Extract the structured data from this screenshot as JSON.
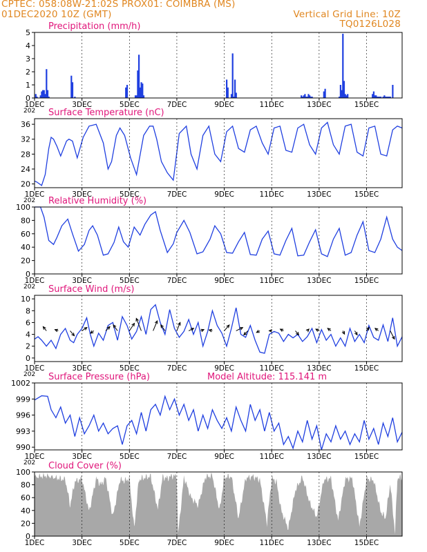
{
  "header": {
    "line1": "CPTEC:   058:08W-21:02S   PROX01: COIMBRA (MS)",
    "line2_left": "01DEC2020 10Z (GMT)",
    "line2_right": "Vertical Grid Line: 10Z",
    "line3_right": "TQ0126L028"
  },
  "colors": {
    "header": "#e0861f",
    "title": "#e0157a",
    "series": "#1f3fe0",
    "cloud": "#a8a8a8",
    "grid": "#000000"
  },
  "x_axis": {
    "tick_labels": [
      "1DEC",
      "3DEC",
      "5DEC",
      "7DEC",
      "9DEC",
      "11DEC",
      "13DEC",
      "15DEC"
    ],
    "tick_days": [
      0,
      2,
      4,
      6,
      8,
      10,
      12,
      14
    ],
    "range_days": [
      0,
      15.5
    ],
    "year_fragment": "202"
  },
  "chart_data": [
    {
      "id": "precip",
      "type": "bar",
      "title": "Precipitation (mm/h)",
      "ylim": [
        0,
        5
      ],
      "yticks": [
        0,
        1,
        2,
        3,
        4,
        5
      ],
      "ytick_labels": [
        "0",
        "1",
        "2",
        "3",
        "4",
        "5"
      ],
      "x": [
        0.05,
        0.1,
        0.25,
        0.3,
        0.35,
        0.4,
        0.45,
        0.5,
        0.55,
        0.6,
        1.55,
        1.6,
        1.7,
        3.85,
        3.9,
        4.25,
        4.3,
        4.35,
        4.4,
        4.45,
        4.5,
        4.55,
        4.6,
        8.1,
        8.15,
        8.3,
        8.35,
        8.4,
        8.45,
        8.5,
        11.25,
        11.3,
        11.35,
        11.4,
        11.45,
        11.5,
        11.55,
        11.6,
        11.65,
        11.7,
        12.2,
        12.25,
        12.85,
        12.9,
        12.95,
        13.0,
        13.05,
        13.1,
        13.15,
        13.2,
        14.25,
        14.3,
        14.35,
        14.4,
        14.45,
        14.5,
        14.55,
        14.6,
        14.7,
        14.75,
        14.8,
        14.85,
        14.9,
        14.95,
        15.0,
        15.1
      ],
      "values": [
        0.3,
        0.1,
        0.2,
        0.5,
        0.6,
        0.6,
        0.3,
        2.2,
        0.6,
        0.1,
        1.7,
        1.2,
        0.1,
        0.8,
        1.0,
        0.2,
        0.2,
        2.1,
        3.3,
        0.8,
        1.2,
        1.1,
        0.2,
        1.4,
        0.8,
        0.3,
        3.4,
        0.1,
        1.4,
        0.4,
        0.2,
        0.1,
        0.2,
        0.3,
        0.1,
        0.1,
        0.3,
        0.2,
        0.1,
        0.1,
        0.5,
        0.7,
        0.1,
        1.0,
        0.6,
        4.9,
        1.3,
        0.3,
        0.2,
        0.3,
        0.3,
        0.5,
        0.2,
        0.2,
        0.1,
        0.1,
        0.1,
        0.1,
        0.1,
        0.2,
        0.1,
        0.1,
        0.1,
        0.1,
        0.1,
        1.0
      ]
    },
    {
      "id": "temp",
      "type": "line",
      "title": "Surface Temperature (nC)",
      "ylim": [
        19,
        37.5
      ],
      "yticks": [
        20,
        24,
        28,
        32,
        36
      ],
      "ytick_labels": [
        "20",
        "24",
        "28",
        "32",
        "36"
      ],
      "x": [
        0,
        0.1,
        0.3,
        0.45,
        0.6,
        0.7,
        0.8,
        0.95,
        1.1,
        1.35,
        1.45,
        1.6,
        1.8,
        2.05,
        2.3,
        2.6,
        2.9,
        3.1,
        3.25,
        3.45,
        3.6,
        3.8,
        4.05,
        4.3,
        4.6,
        4.85,
        5.0,
        5.15,
        5.35,
        5.6,
        5.85,
        6.1,
        6.4,
        6.6,
        6.85,
        7.1,
        7.35,
        7.6,
        7.85,
        8.1,
        8.35,
        8.6,
        8.85,
        9.1,
        9.35,
        9.6,
        9.85,
        10.1,
        10.35,
        10.6,
        10.85,
        11.1,
        11.35,
        11.6,
        11.85,
        12.1,
        12.35,
        12.6,
        12.85,
        13.1,
        13.35,
        13.6,
        13.85,
        14.1,
        14.35,
        14.6,
        14.85,
        15.1,
        15.3,
        15.5
      ],
      "values": [
        20.8,
        20.5,
        19.6,
        22.5,
        29.5,
        32.5,
        32.0,
        30.0,
        27.5,
        31.5,
        32.0,
        31.5,
        27.0,
        32.5,
        35.5,
        36.0,
        31.0,
        24.0,
        26.0,
        33.0,
        35.0,
        33.0,
        27.0,
        22.5,
        33.0,
        35.5,
        35.5,
        32.0,
        26.0,
        23.0,
        21.0,
        33.5,
        35.5,
        28.0,
        24.0,
        33.0,
        35.5,
        28.0,
        26.0,
        34.0,
        35.5,
        29.5,
        28.5,
        34.5,
        35.5,
        31.0,
        28.0,
        35.0,
        35.5,
        29.0,
        28.5,
        35.0,
        36.0,
        30.5,
        28.0,
        35.0,
        36.5,
        30.5,
        28.0,
        35.5,
        36.0,
        28.5,
        27.5,
        35.0,
        35.5,
        28.0,
        27.5,
        34.5,
        35.5,
        35.0
      ]
    },
    {
      "id": "rh",
      "type": "line",
      "title": "Relative Humidity (%)",
      "ylim": [
        0,
        100
      ],
      "yticks": [
        0,
        20,
        40,
        60,
        80,
        100
      ],
      "ytick_labels": [
        "0",
        "20",
        "40",
        "60",
        "80",
        "100"
      ],
      "x": [
        0,
        0.25,
        0.4,
        0.6,
        0.8,
        0.95,
        1.15,
        1.4,
        1.6,
        1.85,
        2.1,
        2.3,
        2.45,
        2.65,
        2.9,
        3.1,
        3.35,
        3.55,
        3.75,
        3.95,
        4.2,
        4.45,
        4.65,
        4.9,
        5.1,
        5.3,
        5.6,
        5.85,
        6.0,
        6.3,
        6.55,
        6.85,
        7.1,
        7.4,
        7.6,
        7.85,
        8.1,
        8.35,
        8.6,
        8.85,
        9.1,
        9.35,
        9.6,
        9.85,
        10.1,
        10.35,
        10.6,
        10.85,
        11.1,
        11.35,
        11.6,
        11.85,
        12.1,
        12.35,
        12.6,
        12.85,
        13.1,
        13.35,
        13.6,
        13.85,
        14.1,
        14.35,
        14.6,
        14.85,
        15.1,
        15.3,
        15.5
      ],
      "values": [
        100,
        100,
        85,
        50,
        44,
        55,
        72,
        82,
        60,
        34,
        44,
        65,
        72,
        58,
        28,
        30,
        47,
        70,
        48,
        40,
        70,
        58,
        74,
        88,
        93,
        65,
        32,
        45,
        62,
        80,
        62,
        30,
        33,
        52,
        72,
        60,
        32,
        31,
        48,
        62,
        29,
        28,
        52,
        64,
        30,
        28,
        50,
        68,
        27,
        28,
        48,
        66,
        30,
        26,
        52,
        68,
        28,
        32,
        58,
        78,
        35,
        32,
        52,
        85,
        52,
        40,
        35
      ]
    },
    {
      "id": "wind",
      "type": "line",
      "title": "Surface Wind (m/s)",
      "ylim": [
        -0.6,
        10.6
      ],
      "yticks": [
        0,
        2,
        4,
        6,
        8,
        10
      ],
      "ytick_labels": [
        "0",
        "2",
        "4",
        "6",
        "8",
        "10"
      ],
      "x": [
        0,
        0.15,
        0.3,
        0.5,
        0.7,
        0.9,
        1.1,
        1.3,
        1.5,
        1.65,
        1.8,
        2.0,
        2.2,
        2.35,
        2.5,
        2.7,
        2.9,
        3.1,
        3.3,
        3.5,
        3.7,
        3.9,
        4.1,
        4.3,
        4.5,
        4.7,
        4.9,
        5.1,
        5.3,
        5.5,
        5.7,
        5.9,
        6.1,
        6.3,
        6.5,
        6.7,
        6.9,
        7.1,
        7.3,
        7.5,
        7.7,
        7.9,
        8.1,
        8.3,
        8.5,
        8.7,
        8.9,
        9.1,
        9.3,
        9.5,
        9.7,
        9.9,
        10.1,
        10.3,
        10.5,
        10.7,
        10.9,
        11.1,
        11.3,
        11.5,
        11.7,
        11.9,
        12.1,
        12.3,
        12.5,
        12.7,
        12.9,
        13.1,
        13.3,
        13.5,
        13.7,
        13.9,
        14.1,
        14.3,
        14.5,
        14.7,
        14.9,
        15.1,
        15.3,
        15.5
      ],
      "values": [
        3.2,
        3.6,
        3.0,
        2.0,
        3.0,
        1.6,
        4.0,
        5.0,
        3.0,
        2.6,
        4.0,
        5.0,
        6.8,
        4.0,
        2.0,
        4.2,
        3.0,
        5.5,
        6.0,
        3.0,
        7.0,
        5.5,
        3.2,
        4.5,
        7.0,
        4.0,
        8.2,
        9.0,
        6.0,
        4.0,
        8.2,
        5.0,
        3.5,
        4.5,
        6.5,
        4.0,
        6.0,
        2.0,
        4.5,
        8.0,
        5.5,
        4.2,
        2.0,
        5.0,
        8.5,
        4.0,
        3.5,
        5.5,
        3.0,
        1.0,
        0.8,
        4.0,
        4.5,
        4.2,
        2.8,
        4.0,
        3.4,
        4.0,
        2.8,
        3.6,
        5.0,
        2.6,
        4.8,
        3.0,
        4.0,
        2.0,
        3.4,
        2.0,
        5.0,
        2.8,
        4.0,
        2.6,
        5.5,
        3.5,
        3.0,
        5.6,
        2.8,
        6.8,
        2.0,
        3.6
      ],
      "arrows_days": [
        0.5,
        1.0,
        1.5,
        2.0,
        2.5,
        3.0,
        3.5,
        4.0,
        4.5,
        5.0,
        5.5,
        6.0,
        6.5,
        7.0,
        7.5,
        8.0,
        8.5,
        9.0,
        9.5,
        10.0,
        10.5,
        11.0,
        11.5,
        12.0,
        12.5,
        13.0,
        13.5,
        14.0,
        14.5,
        15.0
      ],
      "arrows_u": [
        -0.8,
        -0.8,
        1.0,
        1.2,
        -0.8,
        1.0,
        -1.0,
        1.2,
        -1.2,
        1.0,
        -1.0,
        0.8,
        1.2,
        0.8,
        -0.8,
        1.2,
        1.6,
        -1.0,
        -0.8,
        -0.6,
        -0.8,
        0.8,
        0.4,
        -0.8,
        -0.8,
        0.4,
        0.6,
        0.6,
        -0.8,
        1.0
      ],
      "arrows_v": [
        1.0,
        0.3,
        -1.2,
        0.8,
        -0.6,
        1.0,
        1.4,
        1.8,
        3.0,
        2.4,
        1.4,
        2.0,
        0.6,
        0.3,
        0.2,
        1.4,
        0.8,
        -1.0,
        -0.4,
        0.0,
        0.4,
        -1.0,
        0.4,
        0.4,
        0.6,
        -0.8,
        -1.0,
        0.8,
        0.6,
        -2.0
      ]
    },
    {
      "id": "pres",
      "type": "line",
      "title": "Surface Pressure (hPa)",
      "extra_label": "Model Altitude: 115.141 m",
      "ylim": [
        989.5,
        1002
      ],
      "yticks": [
        990,
        993,
        996,
        999,
        1002
      ],
      "ytick_labels": [
        "990",
        "993",
        "996",
        "999",
        "1002"
      ],
      "x": [
        0,
        0.3,
        0.55,
        0.7,
        0.9,
        1.1,
        1.3,
        1.5,
        1.7,
        1.9,
        2.1,
        2.3,
        2.5,
        2.7,
        2.9,
        3.1,
        3.3,
        3.5,
        3.7,
        3.9,
        4.1,
        4.3,
        4.5,
        4.7,
        4.9,
        5.1,
        5.3,
        5.5,
        5.7,
        5.9,
        6.1,
        6.3,
        6.5,
        6.7,
        6.9,
        7.1,
        7.3,
        7.5,
        7.7,
        7.9,
        8.1,
        8.3,
        8.5,
        8.7,
        8.9,
        9.1,
        9.3,
        9.5,
        9.7,
        9.9,
        10.1,
        10.3,
        10.5,
        10.7,
        10.9,
        11.1,
        11.3,
        11.5,
        11.7,
        11.9,
        12.1,
        12.3,
        12.5,
        12.7,
        12.9,
        13.1,
        13.3,
        13.5,
        13.7,
        13.9,
        14.1,
        14.3,
        14.5,
        14.7,
        14.9,
        15.1,
        15.3,
        15.5
      ],
      "values": [
        998.8,
        999.6,
        999.5,
        997.0,
        995.5,
        997.5,
        994.5,
        996.0,
        992.0,
        995.5,
        992.5,
        994.0,
        996.0,
        993.0,
        994.5,
        992.5,
        993.5,
        994.0,
        990.5,
        994.0,
        995.0,
        992.5,
        996.5,
        993.0,
        997.0,
        998.0,
        996.0,
        999.5,
        997.0,
        999.0,
        996.0,
        998.0,
        995.0,
        997.0,
        993.0,
        996.0,
        993.5,
        997.0,
        995.0,
        993.5,
        995.5,
        993.0,
        997.5,
        995.0,
        993.0,
        998.0,
        995.0,
        997.0,
        993.0,
        996.5,
        993.0,
        994.5,
        990.5,
        992.0,
        989.8,
        993.0,
        991.0,
        995.0,
        991.5,
        994.0,
        989.5,
        992.5,
        991.0,
        994.0,
        991.5,
        993.0,
        990.5,
        992.5,
        991.0,
        995.0,
        991.5,
        993.5,
        990.5,
        994.5,
        992.0,
        995.5,
        991.0,
        992.8
      ]
    },
    {
      "id": "cloud",
      "type": "area",
      "title": "Cloud Cover (%)",
      "ylim": [
        0,
        100
      ],
      "yticks": [
        0,
        20,
        40,
        60,
        80,
        100
      ],
      "ytick_labels": [
        "0",
        "20",
        "40",
        "60",
        "80",
        "100"
      ],
      "x": [
        0,
        0.5,
        1.0,
        1.3,
        1.5,
        1.7,
        2.0,
        2.3,
        2.6,
        2.8,
        3.0,
        3.3,
        3.6,
        3.8,
        4.0,
        4.2,
        4.4,
        4.6,
        4.9,
        5.2,
        5.4,
        5.6,
        5.8,
        6.0,
        6.05,
        6.3,
        6.6,
        6.9,
        7.2,
        7.5,
        7.8,
        8.0,
        8.3,
        8.6,
        8.9,
        9.2,
        9.5,
        9.8,
        10.0,
        10.2,
        10.4,
        10.7,
        11.0,
        11.3,
        11.6,
        11.9,
        12.2,
        12.5,
        12.8,
        13.1,
        13.4,
        13.7,
        14.0,
        14.3,
        14.6,
        14.8,
        15.0,
        15.2,
        15.3,
        15.5
      ],
      "values": [
        92,
        94,
        90,
        88,
        48,
        85,
        90,
        38,
        90,
        80,
        91,
        30,
        88,
        86,
        90,
        12,
        88,
        91,
        93,
        42,
        92,
        90,
        94,
        93,
        2,
        92,
        60,
        48,
        92,
        94,
        40,
        92,
        93,
        28,
        90,
        93,
        88,
        20,
        90,
        85,
        40,
        12,
        72,
        92,
        52,
        30,
        88,
        90,
        24,
        89,
        90,
        15,
        90,
        87,
        38,
        28,
        82,
        5,
        90,
        92
      ]
    }
  ]
}
